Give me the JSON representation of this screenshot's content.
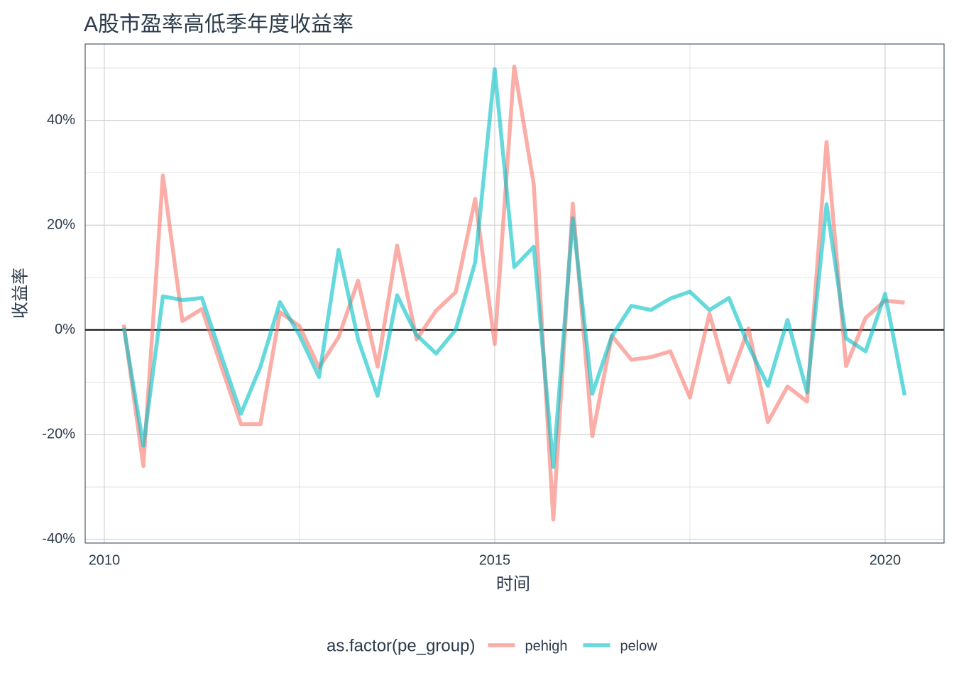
{
  "chart_data": {
    "type": "line",
    "title": "A股市盈率高低季年度收益率",
    "x_label": "时间",
    "y_label": "收益率",
    "legend_title": "as.factor(pe_group)",
    "legend_position": "bottom",
    "grid": true,
    "hline": 0,
    "x": [
      2010.25,
      2010.5,
      2010.75,
      2011,
      2011.25,
      2011.5,
      2011.75,
      2012,
      2012.25,
      2012.5,
      2012.75,
      2013,
      2013.25,
      2013.5,
      2013.75,
      2014,
      2014.25,
      2014.5,
      2014.75,
      2015,
      2015.25,
      2015.5,
      2015.75,
      2016,
      2016.25,
      2016.5,
      2016.75,
      2017,
      2017.25,
      2017.5,
      2017.75,
      2018,
      2018.25,
      2018.5,
      2018.75,
      2019,
      2019.25,
      2019.5,
      2019.75,
      2020,
      2020.25
    ],
    "series": [
      {
        "name": "pehigh",
        "color": "#F8766D",
        "values": [
          1,
          -26,
          29.5,
          1.7,
          4,
          -7,
          -18,
          -18,
          3.4,
          0.7,
          -7.2,
          -1.4,
          9.4,
          -7,
          16.1,
          -1.8,
          3.7,
          7.2,
          25,
          -2.7,
          50.3,
          27.8,
          -36.2,
          24.1,
          -20.3,
          -1.1,
          -5.7,
          -5.2,
          -4.1,
          -12.9,
          3.1,
          -10,
          0.3,
          -17.6,
          -10.8,
          -13.7,
          35.9,
          -6.9,
          2.3,
          5.6,
          5.2
        ]
      },
      {
        "name": "pelow",
        "color": "#00BFC4",
        "values": [
          0.4,
          -22.1,
          6.4,
          5.7,
          6.1,
          -5,
          -16,
          -7,
          5.3,
          -1,
          -9,
          15.3,
          -1.8,
          -12.6,
          6.6,
          -1,
          -4.5,
          0,
          12.9,
          49.8,
          12,
          15.9,
          -26.2,
          21.3,
          -12.2,
          -1.2,
          4.6,
          3.8,
          6,
          7.3,
          3.8,
          6.1,
          -3,
          -10.7,
          1.9,
          -11.9,
          24,
          -1.6,
          -4.1,
          6.9,
          -12.5
        ]
      }
    ],
    "xlim": [
      2009.755,
      2020.755
    ],
    "xticks": [
      2010,
      2015,
      2020
    ],
    "ylim": [
      -40.7,
      54.6
    ],
    "yticks": [
      {
        "value": -40,
        "label": "-40%"
      },
      {
        "value": -20,
        "label": "-20%"
      },
      {
        "value": 0,
        "label": "0%"
      },
      {
        "value": 20,
        "label": "20%"
      },
      {
        "value": 40,
        "label": "40%"
      }
    ]
  }
}
